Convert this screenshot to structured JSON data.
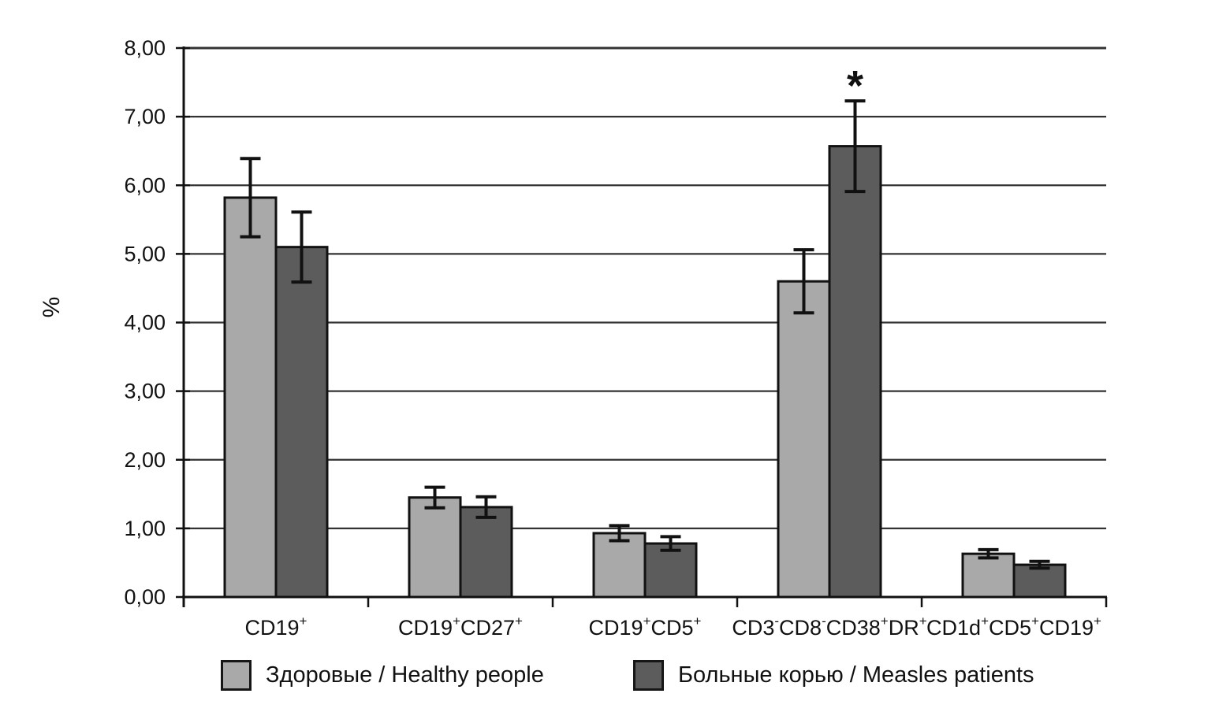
{
  "chart_data": {
    "type": "bar",
    "title": "",
    "xlabel": "",
    "ylabel": "%",
    "ylim": [
      0,
      8
    ],
    "ytick_step": 1,
    "ytick_labels": [
      "0,00",
      "1,00",
      "2,00",
      "3,00",
      "4,00",
      "5,00",
      "6,00",
      "7,00",
      "8,00"
    ],
    "grid": true,
    "legend_position": "bottom",
    "categories": [
      "CD19+",
      "CD19+CD27+",
      "CD19+CD5+",
      "CD3-CD8-CD38+DR+",
      "CD1d+CD5+CD19+"
    ],
    "category_parts": [
      [
        {
          "t": "CD19"
        },
        {
          "t": "+",
          "sup": true
        }
      ],
      [
        {
          "t": "CD19"
        },
        {
          "t": "+",
          "sup": true
        },
        {
          "t": "CD27"
        },
        {
          "t": "+",
          "sup": true
        }
      ],
      [
        {
          "t": "CD19"
        },
        {
          "t": "+",
          "sup": true
        },
        {
          "t": "CD5"
        },
        {
          "t": "+",
          "sup": true
        }
      ],
      [
        {
          "t": "CD3"
        },
        {
          "t": "-",
          "sup": true
        },
        {
          "t": "CD8"
        },
        {
          "t": "-",
          "sup": true
        },
        {
          "t": "CD38"
        },
        {
          "t": "+",
          "sup": true
        },
        {
          "t": "DR"
        },
        {
          "t": "+",
          "sup": true
        }
      ],
      [
        {
          "t": "CD1d"
        },
        {
          "t": "+",
          "sup": true
        },
        {
          "t": "CD5"
        },
        {
          "t": "+",
          "sup": true
        },
        {
          "t": "CD19"
        },
        {
          "t": "+",
          "sup": true
        }
      ]
    ],
    "series": [
      {
        "name": "Здоровые / Healthy people",
        "color": "#a9a9a9",
        "values": [
          5.82,
          1.45,
          0.93,
          4.6,
          0.63
        ],
        "errors": [
          0.57,
          0.15,
          0.11,
          0.46,
          0.06
        ]
      },
      {
        "name": "Больные корью / Measles patients",
        "color": "#5c5c5c",
        "values": [
          5.1,
          1.31,
          0.78,
          6.57,
          0.47
        ],
        "errors": [
          0.51,
          0.15,
          0.1,
          0.66,
          0.05
        ]
      }
    ],
    "annotations": [
      {
        "text": "*",
        "category_index": 3,
        "series_index": 1,
        "meaning": "significance-marker"
      }
    ],
    "colors": {
      "axis": "#111111",
      "gridline": "#333333",
      "bar_border": "#111111",
      "error_bar": "#111111",
      "text": "#111111"
    }
  }
}
